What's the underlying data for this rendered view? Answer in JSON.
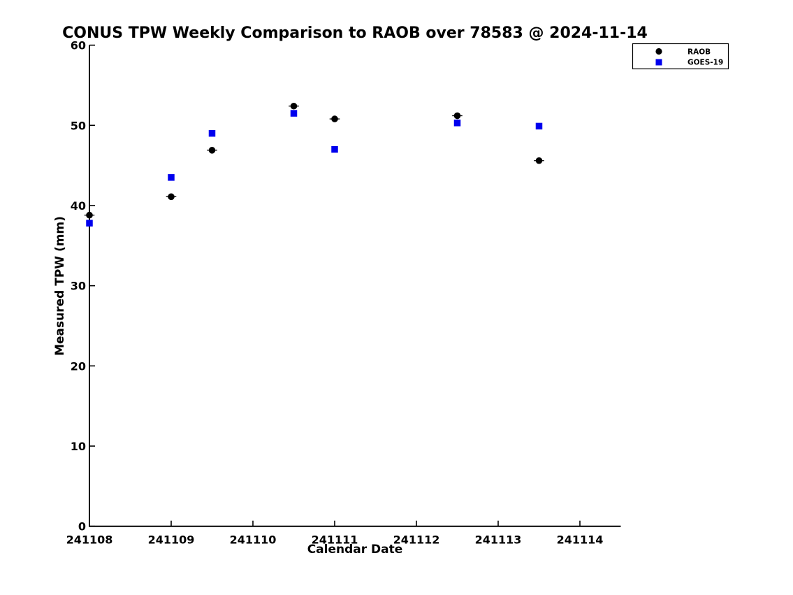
{
  "chart_data": {
    "type": "scatter",
    "title": "CONUS TPW Weekly Comparison to RAOB over 78583 @ 2024-11-14",
    "xlabel": "Calendar Date",
    "ylabel": "Measured TPW (mm)",
    "xlim": [
      241108,
      241114.5
    ],
    "ylim": [
      0,
      60
    ],
    "grid": false,
    "legend_position": "top-right",
    "x_ticks": [
      241108,
      241109,
      241110,
      241111,
      241112,
      241113,
      241114
    ],
    "x_tick_labels": [
      "241108",
      "241109",
      "241110",
      "241111",
      "241112",
      "241113",
      "241114"
    ],
    "y_ticks": [
      0,
      10,
      20,
      30,
      40,
      50,
      60
    ],
    "y_tick_labels": [
      "0",
      "10",
      "20",
      "30",
      "40",
      "50",
      "60"
    ],
    "series": [
      {
        "name": "RAOB",
        "marker": "circle",
        "color": "#000000",
        "points": [
          [
            241108.0,
            38.8
          ],
          [
            241109.0,
            41.1
          ],
          [
            241109.5,
            46.9
          ],
          [
            241110.5,
            52.4
          ],
          [
            241111.0,
            50.8
          ],
          [
            241112.5,
            51.2
          ],
          [
            241113.5,
            45.6
          ]
        ]
      },
      {
        "name": "GOES-19",
        "marker": "square",
        "color": "#0000ee",
        "points": [
          [
            241108.0,
            37.8
          ],
          [
            241109.0,
            43.5
          ],
          [
            241109.5,
            49.0
          ],
          [
            241110.5,
            51.5
          ],
          [
            241111.0,
            47.0
          ],
          [
            241112.5,
            50.3
          ],
          [
            241113.5,
            49.9
          ]
        ]
      }
    ]
  },
  "colors": {
    "background": "#ffffff",
    "axis": "#000000",
    "text": "#000000",
    "raob": "#000000",
    "goes19": "#0000ee"
  }
}
